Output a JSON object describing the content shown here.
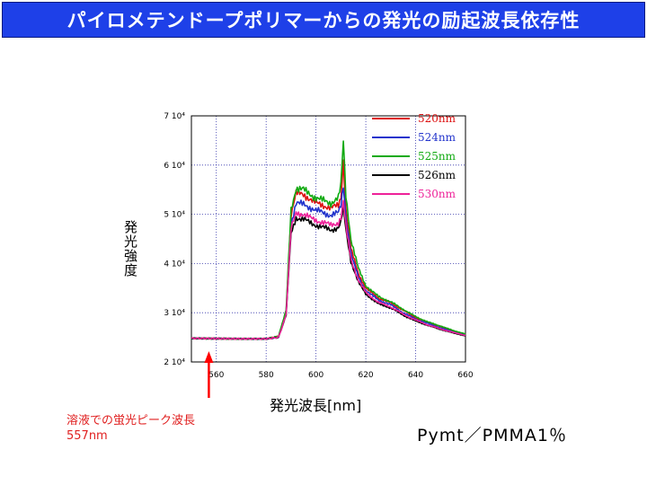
{
  "header": {
    "title": "パイロメテンドープポリマーからの発光の励起波長依存性"
  },
  "annotation": {
    "line1": "溶液での蛍光ピーク波長",
    "line2": "557nm",
    "arrow_x": 557,
    "arrow_color": "#ff0000"
  },
  "sample_label": "Pymt／PMMA1％",
  "chart_data": {
    "type": "line",
    "title": "",
    "xlabel": "発光波長[nm]",
    "ylabel": "発光強度",
    "xlim": [
      550,
      660
    ],
    "ylim": [
      20000,
      70000
    ],
    "xticks": [
      560,
      580,
      600,
      620,
      640,
      660
    ],
    "xtick_labels": [
      "560",
      "580",
      "600",
      "620",
      "640",
      "660"
    ],
    "yticks": [
      20000,
      30000,
      40000,
      50000,
      60000,
      70000
    ],
    "ytick_labels": [
      "2 10⁴",
      "3 10⁴",
      "4 10⁴",
      "5 10⁴",
      "6 10⁴",
      "7 10⁴"
    ],
    "grid": true,
    "legend_position": "top-right",
    "series": [
      {
        "name": "520nm",
        "color": "#dd1111",
        "x": [
          550,
          570,
          580,
          585,
          588,
          590,
          592,
          595,
          598,
          600,
          603,
          606,
          609,
          610,
          611,
          612,
          614,
          617,
          620,
          625,
          630,
          635,
          640,
          645,
          650,
          655,
          660
        ],
        "y": [
          24800,
          24700,
          24700,
          25200,
          30000,
          50000,
          54300,
          54000,
          53000,
          52300,
          51800,
          51300,
          51800,
          53500,
          61000,
          51000,
          43000,
          38000,
          35000,
          33000,
          32000,
          30500,
          29000,
          28000,
          27200,
          26300,
          25600
        ]
      },
      {
        "name": "524nm",
        "color": "#2233cc",
        "x": [
          550,
          570,
          580,
          585,
          588,
          590,
          592,
          595,
          598,
          600,
          603,
          606,
          609,
          610,
          611,
          612,
          614,
          617,
          620,
          625,
          630,
          635,
          640,
          645,
          650,
          655,
          660
        ],
        "y": [
          24800,
          24700,
          24700,
          25100,
          30000,
          48000,
          52300,
          52000,
          51300,
          50800,
          50300,
          49800,
          50300,
          51800,
          56000,
          49500,
          42000,
          37200,
          34500,
          32600,
          31600,
          30000,
          28700,
          27800,
          26900,
          26100,
          25500
        ]
      },
      {
        "name": "525nm",
        "color": "#11aa11",
        "x": [
          550,
          570,
          580,
          585,
          588,
          590,
          592,
          595,
          598,
          600,
          603,
          606,
          609,
          610,
          611,
          612,
          614,
          617,
          620,
          625,
          630,
          635,
          640,
          645,
          650,
          655,
          660
        ],
        "y": [
          24800,
          24700,
          24700,
          25200,
          30500,
          51000,
          55300,
          55000,
          54000,
          53300,
          52800,
          52300,
          53300,
          56000,
          65000,
          54000,
          45000,
          39000,
          35500,
          33300,
          32200,
          30700,
          29200,
          28100,
          27300,
          26400,
          25700
        ]
      },
      {
        "name": "526nm",
        "color": "#000000",
        "x": [
          550,
          570,
          580,
          585,
          588,
          590,
          592,
          595,
          598,
          600,
          603,
          606,
          609,
          610,
          611,
          612,
          614,
          617,
          620,
          625,
          630,
          635,
          640,
          645,
          650,
          655,
          660
        ],
        "y": [
          24800,
          24700,
          24700,
          25000,
          29500,
          46000,
          49300,
          49000,
          48200,
          47800,
          47300,
          46800,
          47300,
          48300,
          51500,
          46800,
          40500,
          36200,
          33800,
          31800,
          31000,
          29500,
          28300,
          27400,
          26600,
          25900,
          25300
        ]
      },
      {
        "name": "530nm",
        "color": "#ee2299",
        "x": [
          550,
          570,
          580,
          585,
          588,
          590,
          592,
          595,
          598,
          600,
          603,
          606,
          609,
          610,
          611,
          612,
          614,
          617,
          620,
          625,
          630,
          635,
          640,
          645,
          650,
          655,
          660
        ],
        "y": [
          24800,
          24700,
          24700,
          25000,
          29700,
          47000,
          50300,
          50000,
          49200,
          48800,
          48300,
          47800,
          48300,
          49300,
          52500,
          47500,
          41000,
          36600,
          34100,
          32100,
          31200,
          29700,
          28500,
          27500,
          26700,
          26000,
          25400
        ]
      }
    ]
  }
}
